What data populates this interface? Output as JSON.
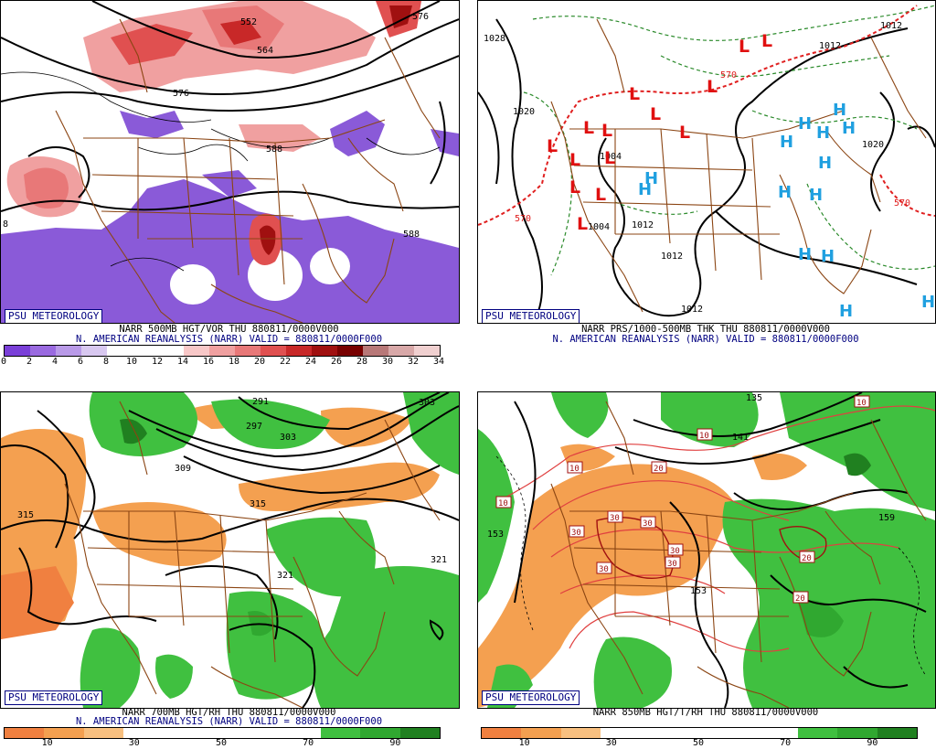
{
  "panels": [
    {
      "logo": "PSU METEOROLOGY",
      "caption1": "NARR 500MB HGT/VOR THU 880811/0000V000",
      "caption2": "N. AMERICAN REANALYSIS (NARR) VALID = 880811/0000F000",
      "contour_labels": [
        "552",
        "564",
        "576",
        "576",
        "588",
        "588",
        "8"
      ],
      "colorbar": {
        "colors": [
          "#7a3fd8",
          "#9a6ae0",
          "#b99ae8",
          "#d8c8f0",
          "#ffffff",
          "#ffffff",
          "#ffffff",
          "#f8c8c8",
          "#f0a0a0",
          "#e87878",
          "#e05050",
          "#c82828",
          "#a01010",
          "#780000",
          "#b87878",
          "#d8a8a8",
          "#f0d0d0"
        ],
        "labels": [
          "0",
          "2",
          "4",
          "6",
          "8",
          "10",
          "12",
          "14",
          "16",
          "18",
          "20",
          "22",
          "24",
          "26",
          "28",
          "30",
          "32",
          "34"
        ]
      }
    },
    {
      "logo": "PSU METEOROLOGY",
      "caption1": "NARR PRS/1000-500MB THK THU 880811/0000V000",
      "caption2": "N. AMERICAN REANALYSIS (NARR) VALID = 880811/0000F000",
      "contour_labels": [
        "1028",
        "1020",
        "1012",
        "1012",
        "1012",
        "1012",
        "1020",
        "1004",
        "1004",
        "1012",
        "570",
        "570",
        "570"
      ],
      "low_symbol": "L",
      "high_symbol": "H"
    },
    {
      "logo": "PSU METEOROLOGY",
      "caption1": "NARR 700MB HGT/RH THU 880811/0000V000",
      "caption2": "N. AMERICAN REANALYSIS (NARR) VALID = 880811/0000F000",
      "contour_labels": [
        "291",
        "297",
        "303",
        "303",
        "309",
        "315",
        "315",
        "321",
        "321"
      ],
      "colorbar": {
        "colors": [
          "#f08040",
          "#f4a050",
          "#f8c080",
          "#ffffff",
          "#ffffff",
          "#ffffff",
          "#ffffff",
          "#ffffff",
          "#40c040",
          "#30a830",
          "#208020"
        ],
        "labels": [
          "10",
          "30",
          "50",
          "70",
          "90"
        ]
      }
    },
    {
      "logo": "PSU METEOROLOGY",
      "caption1": "NARR 850MB HGT/T/RH THU 880811/0000V000",
      "caption2": "",
      "contour_labels": [
        "135",
        "141",
        "153",
        "153",
        "159"
      ],
      "temp_labels": [
        "10",
        "10",
        "10",
        "10",
        "20",
        "30",
        "30",
        "30",
        "30",
        "30",
        "30",
        "20",
        "20"
      ],
      "colorbar": {
        "colors": [
          "#f08040",
          "#f4a050",
          "#f8c080",
          "#ffffff",
          "#ffffff",
          "#ffffff",
          "#ffffff",
          "#ffffff",
          "#40c040",
          "#30a830",
          "#208020"
        ],
        "labels": [
          "10",
          "30",
          "50",
          "70",
          "90"
        ]
      }
    }
  ]
}
